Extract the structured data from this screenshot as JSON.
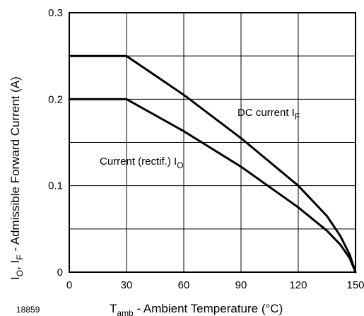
{
  "chart_data": {
    "type": "line",
    "figure_id": "18859",
    "xlabel": {
      "main": "T",
      "sub": "amb",
      "rest": " - Ambient Temperature (°C)"
    },
    "ylabel": {
      "p1": "I",
      "s1": "O",
      "p2": ", I",
      "s2": "F",
      "p3": " - Admissible Forward Current (A)"
    },
    "xlim": [
      0,
      150
    ],
    "ylim": [
      0,
      0.3
    ],
    "x_ticks": [
      0,
      30,
      60,
      90,
      120,
      150
    ],
    "x_tick_labels": [
      "0",
      "30",
      "60",
      "90",
      "120",
      "150"
    ],
    "y_ticks": [
      0,
      0.1,
      0.2,
      0.3
    ],
    "y_tick_labels": [
      "0",
      "0.1",
      "0.2",
      "0.3"
    ],
    "grid": {
      "x_step": 30,
      "y_step": 0.05
    },
    "series": [
      {
        "label_main": "DC current I",
        "label_sub": "F",
        "x": [
          0,
          30,
          60,
          90,
          120,
          135,
          142,
          147,
          150
        ],
        "y": [
          0.25,
          0.25,
          0.205,
          0.155,
          0.1,
          0.065,
          0.042,
          0.02,
          0
        ]
      },
      {
        "label_main": "Current (rectif.) I",
        "label_sub": "O",
        "x": [
          0,
          30,
          60,
          90,
          120,
          135,
          142,
          147,
          150
        ],
        "y": [
          0.2,
          0.2,
          0.163,
          0.122,
          0.075,
          0.048,
          0.032,
          0.016,
          0
        ]
      }
    ]
  }
}
